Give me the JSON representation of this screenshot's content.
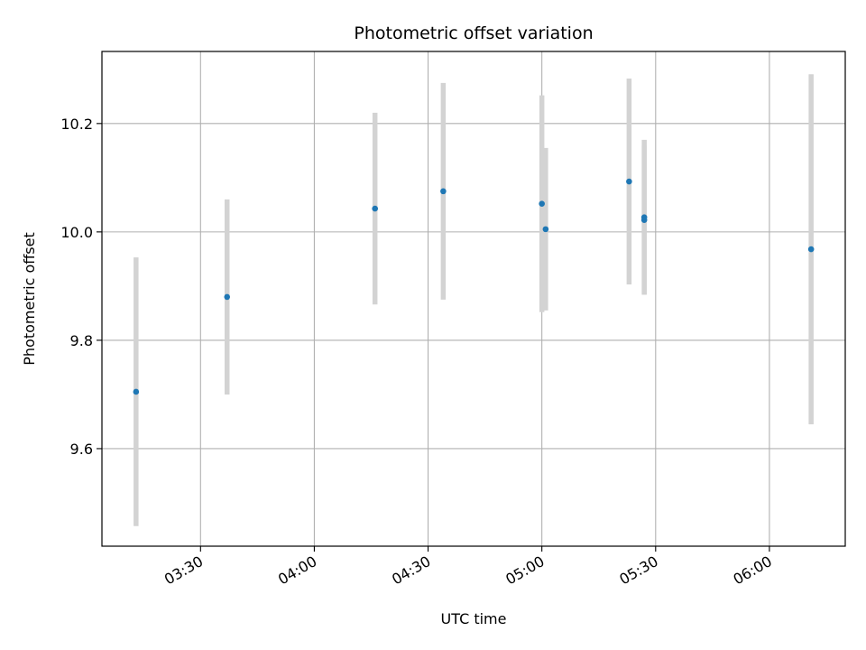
{
  "chart_data": {
    "type": "scatter",
    "title": "Photometric offset variation",
    "xlabel": "UTC time",
    "ylabel": "Photometric offset",
    "x_tick_labels": [
      "03:30",
      "04:00",
      "04:30",
      "05:00",
      "05:30",
      "06:00"
    ],
    "x_tick_values": [
      "03:30",
      "04:00",
      "04:30",
      "05:00",
      "05:30",
      "06:00"
    ],
    "xlim": [
      "03:04",
      "06:20"
    ],
    "y_tick_values": [
      9.6,
      9.8,
      10.0,
      10.2
    ],
    "y_tick_labels": [
      "9.6",
      "9.8",
      "10.0",
      "10.2"
    ],
    "ylim": [
      9.42,
      10.333
    ],
    "grid": true,
    "colors": {
      "point": "#1f77b4",
      "errorbar": "#d3d3d3",
      "grid": "#b0b0b0",
      "axis": "#000000"
    },
    "points": [
      {
        "x": "03:13",
        "y": 9.705,
        "err": 0.248
      },
      {
        "x": "03:37",
        "y": 9.88,
        "err": 0.18
      },
      {
        "x": "04:16",
        "y": 10.043,
        "err": 0.177
      },
      {
        "x": "04:34",
        "y": 10.075,
        "err": 0.2
      },
      {
        "x": "05:00",
        "y": 10.052,
        "err": 0.2
      },
      {
        "x": "05:01",
        "y": 10.005,
        "err": 0.15
      },
      {
        "x": "05:23",
        "y": 10.093,
        "err": 0.19
      },
      {
        "x": "05:27",
        "y": 10.022,
        "err": 0.137
      },
      {
        "x": "05:27",
        "y": 10.027,
        "err": 0.143
      },
      {
        "x": "06:11",
        "y": 9.968,
        "err": 0.323
      }
    ]
  }
}
